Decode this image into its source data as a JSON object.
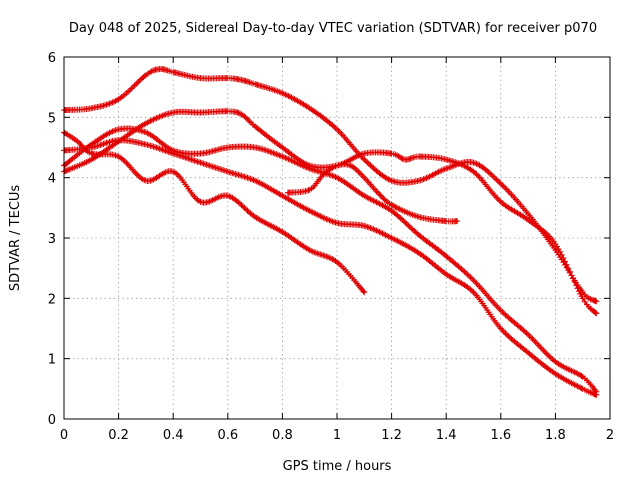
{
  "chart_data": {
    "type": "line",
    "title": "Day 048 of 2025, Sidereal Day-to-day VTEC variation (SDTVAR) for receiver p070",
    "xlabel": "GPS time / hours",
    "ylabel": "SDTVAR / TECUs",
    "xlim": [
      0,
      2
    ],
    "ylim": [
      0,
      6
    ],
    "xticks": [
      "0",
      "0.2",
      "0.4",
      "0.6",
      "0.8",
      "1",
      "1.2",
      "1.4",
      "1.6",
      "1.8",
      "2"
    ],
    "yticks": [
      "0",
      "1",
      "2",
      "3",
      "4",
      "5",
      "6"
    ],
    "grid": true,
    "marker": "+",
    "color": "#e00000",
    "series": [
      {
        "name": "series-1",
        "x": [
          0,
          0.1,
          0.2,
          0.3,
          0.35,
          0.4,
          0.5,
          0.6,
          0.65,
          0.7,
          0.8,
          0.9,
          1.0,
          1.1,
          1.2,
          1.3,
          1.4,
          1.5,
          1.6,
          1.7,
          1.8,
          1.9,
          1.95
        ],
        "y": [
          5.12,
          5.15,
          5.3,
          5.7,
          5.8,
          5.75,
          5.65,
          5.65,
          5.62,
          5.55,
          5.4,
          5.15,
          4.8,
          4.3,
          3.95,
          3.95,
          4.15,
          4.25,
          3.9,
          3.4,
          2.8,
          2.1,
          1.95
        ]
      },
      {
        "name": "series-2",
        "x": [
          0,
          0.1,
          0.2,
          0.3,
          0.4,
          0.5,
          0.6,
          0.65,
          0.7,
          0.8,
          0.9,
          1.0,
          1.1,
          1.2,
          1.25,
          1.3,
          1.4,
          1.5,
          1.6,
          1.7,
          1.8,
          1.9,
          1.95
        ],
        "y": [
          4.1,
          4.3,
          4.6,
          4.9,
          5.08,
          5.08,
          5.1,
          5.05,
          4.85,
          4.5,
          4.2,
          4.2,
          4.4,
          4.4,
          4.3,
          4.35,
          4.3,
          4.1,
          3.6,
          3.3,
          2.9,
          2.0,
          1.75
        ]
      },
      {
        "name": "series-3",
        "x": [
          0,
          0.05,
          0.1,
          0.2,
          0.3,
          0.4,
          0.5,
          0.6,
          0.7,
          0.8,
          0.9,
          1.0,
          1.1,
          1.2,
          1.3,
          1.4,
          1.45
        ],
        "y": [
          4.75,
          4.6,
          4.4,
          4.35,
          3.95,
          4.1,
          3.6,
          3.7,
          3.35,
          3.1,
          2.8,
          2.6,
          2.1,
          null,
          null,
          null,
          null
        ]
      },
      {
        "name": "series-4",
        "x": [
          0,
          0.1,
          0.2,
          0.3,
          0.4,
          0.5,
          0.6,
          0.7,
          0.8,
          0.9,
          1.0,
          1.1,
          1.2,
          1.3,
          1.4,
          1.5,
          1.6,
          1.7,
          1.8,
          1.9,
          1.95
        ],
        "y": [
          4.2,
          4.55,
          4.8,
          4.75,
          4.45,
          4.4,
          4.5,
          4.5,
          4.35,
          4.15,
          4.0,
          3.7,
          3.45,
          3.05,
          2.7,
          2.3,
          1.8,
          1.4,
          0.95,
          0.7,
          0.45
        ]
      },
      {
        "name": "series-5",
        "x": [
          0,
          0.1,
          0.2,
          0.3,
          0.4,
          0.5,
          0.6,
          0.7,
          0.8,
          0.9,
          1.0,
          1.1,
          1.2,
          1.3,
          1.4,
          1.5,
          1.6,
          1.7,
          1.8,
          1.9,
          1.95
        ],
        "y": [
          4.45,
          4.5,
          4.62,
          4.55,
          4.4,
          4.25,
          4.1,
          3.95,
          3.7,
          3.45,
          3.25,
          3.2,
          3.0,
          2.75,
          2.4,
          2.1,
          1.5,
          1.1,
          0.75,
          0.5,
          0.4
        ]
      },
      {
        "name": "series-6",
        "x": [
          0.82,
          0.9,
          0.95,
          1.0,
          1.05,
          1.1,
          1.15,
          1.2,
          1.3,
          1.4,
          1.44
        ],
        "y": [
          3.75,
          3.8,
          4.05,
          4.2,
          4.2,
          4.0,
          3.75,
          3.55,
          3.35,
          3.28,
          3.28
        ]
      }
    ]
  }
}
